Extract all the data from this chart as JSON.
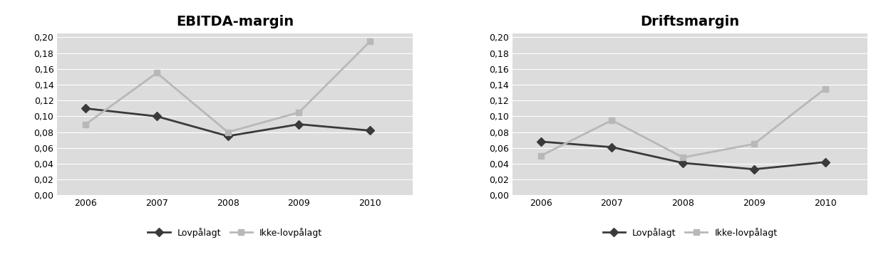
{
  "years": [
    2006,
    2007,
    2008,
    2009,
    2010
  ],
  "ebitda": {
    "title": "EBITDA-margin",
    "lovpalagt": [
      0.11,
      0.1,
      0.075,
      0.09,
      0.082
    ],
    "ikke_lovpalagt": [
      0.09,
      0.155,
      0.08,
      0.105,
      0.195
    ]
  },
  "drifts": {
    "title": "Driftsmargin",
    "lovpalagt": [
      0.068,
      0.061,
      0.041,
      0.033,
      0.042
    ],
    "ikke_lovpalagt": [
      0.05,
      0.095,
      0.048,
      0.065,
      0.135
    ]
  },
  "ylim": [
    0.0,
    0.205
  ],
  "yticks": [
    0.0,
    0.02,
    0.04,
    0.06,
    0.08,
    0.1,
    0.12,
    0.14,
    0.16,
    0.18,
    0.2
  ],
  "legend_labels": [
    "Lovpålagt",
    "Ikke-lovpålagt"
  ],
  "dark_color": "#3a3a3a",
  "light_color": "#b8b8b8",
  "plot_bg_color": "#dcdcdc",
  "fig_bg": "#ffffff",
  "title_fontsize": 14,
  "tick_fontsize": 9,
  "marker_dark": "D",
  "marker_light": "s",
  "linewidth": 2.0,
  "markersize": 6
}
